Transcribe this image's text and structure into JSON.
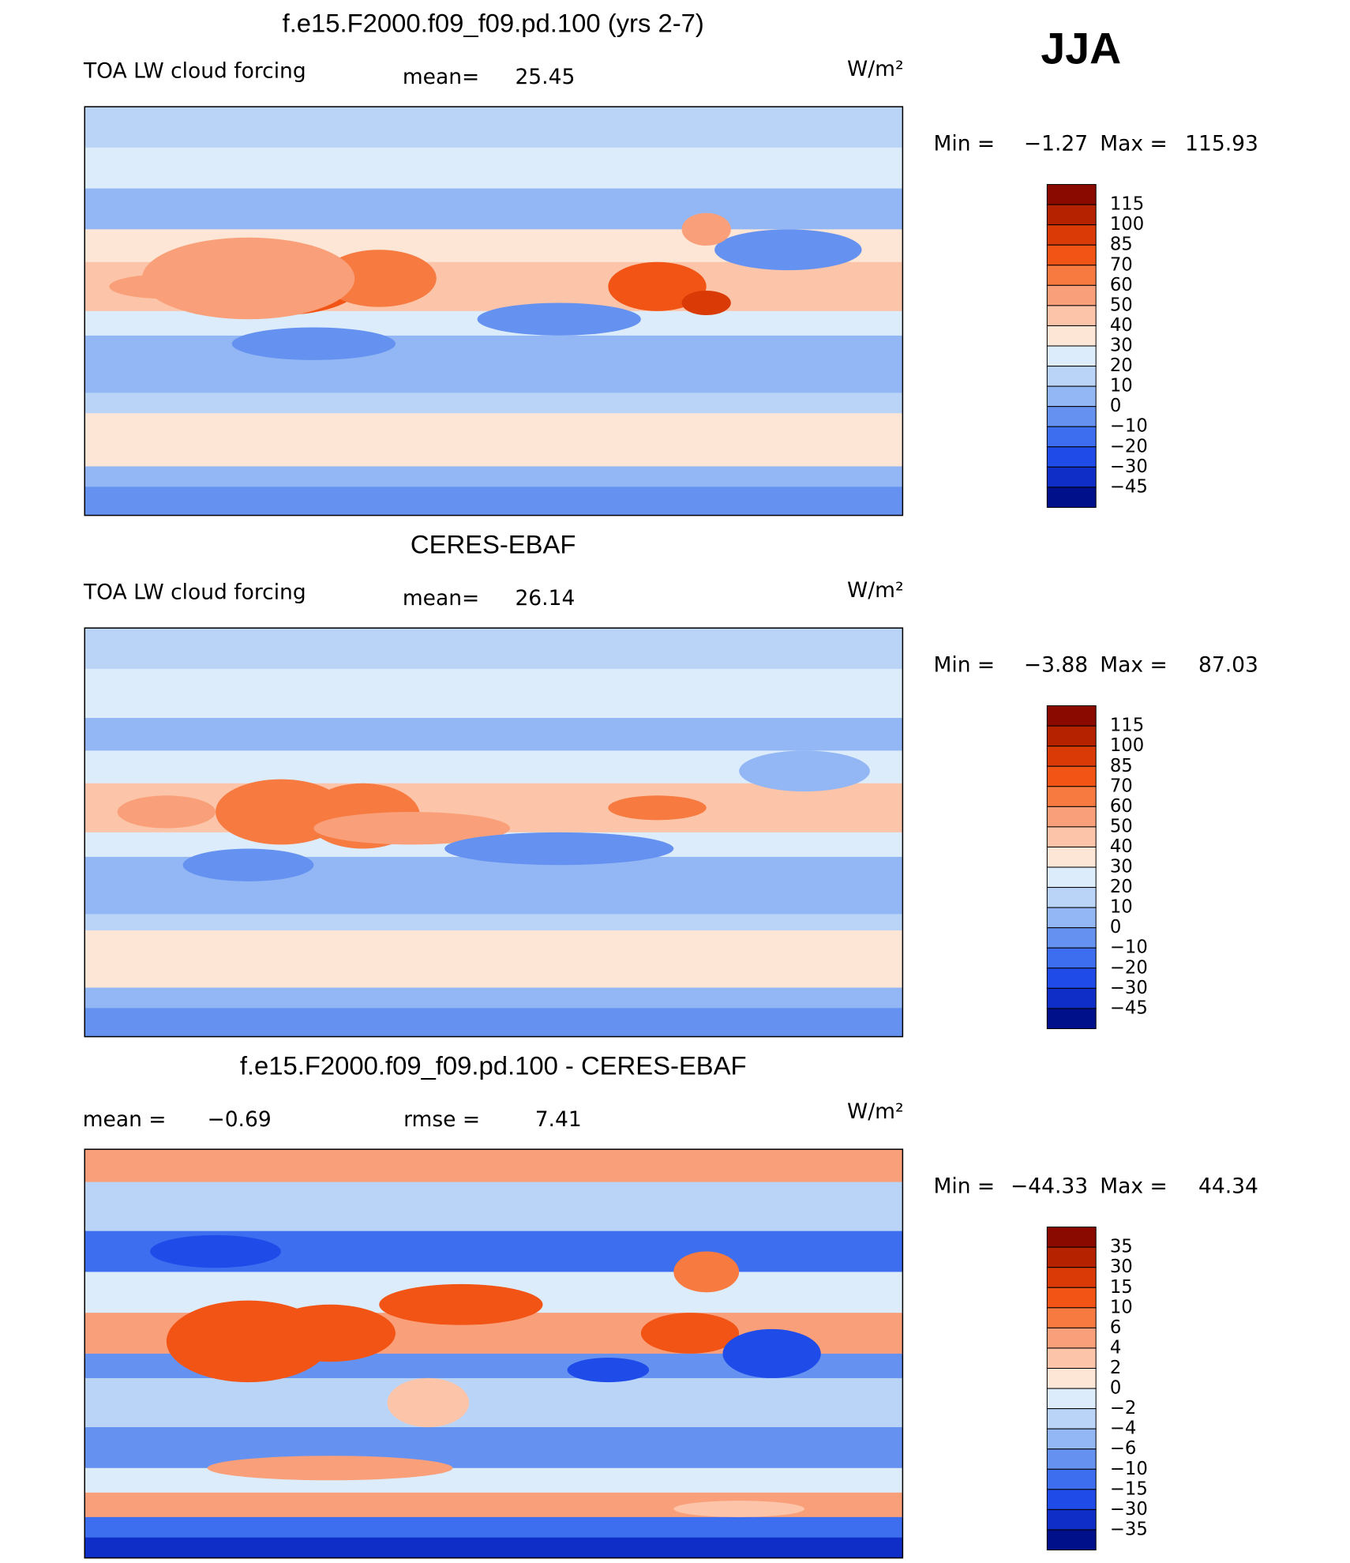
{
  "season": "JJA",
  "panels": [
    {
      "title": "f.e15.F2000.f09_f09.pd.100 (yrs 2-7)",
      "variable": "TOA LW cloud forcing",
      "mean_label": "mean=",
      "mean": "25.45",
      "units": "W/m²",
      "min_label": "Min =",
      "min": "−1.27",
      "max_label": "Max =",
      "max": "115.93",
      "colorbar": {
        "labels": [
          "115",
          "100",
          "85",
          "70",
          "60",
          "50",
          "40",
          "30",
          "20",
          "10",
          "0",
          "−10",
          "−20",
          "−30",
          "−45"
        ],
        "colors": [
          "#8b0a00",
          "#b52200",
          "#d93a06",
          "#f25416",
          "#f77a40",
          "#f9a07a",
          "#fcc4a8",
          "#fde6d6",
          "#dcecfb",
          "#bad4f8",
          "#93b7f5",
          "#6592f0",
          "#3d6ef0",
          "#1f4ce8",
          "#0f2ec8",
          "#00108a"
        ]
      }
    },
    {
      "title": "CERES-EBAF",
      "variable": "TOA LW cloud forcing",
      "mean_label": "mean=",
      "mean": "26.14",
      "units": "W/m²",
      "min_label": "Min =",
      "min": "−3.88",
      "max_label": "Max =",
      "max": "87.03",
      "colorbar": {
        "labels": [
          "115",
          "100",
          "85",
          "70",
          "60",
          "50",
          "40",
          "30",
          "20",
          "10",
          "0",
          "−10",
          "−20",
          "−30",
          "−45"
        ],
        "colors": [
          "#8b0a00",
          "#b52200",
          "#d93a06",
          "#f25416",
          "#f77a40",
          "#f9a07a",
          "#fcc4a8",
          "#fde6d6",
          "#dcecfb",
          "#bad4f8",
          "#93b7f5",
          "#6592f0",
          "#3d6ef0",
          "#1f4ce8",
          "#0f2ec8",
          "#00108a"
        ]
      }
    },
    {
      "title": "f.e15.F2000.f09_f09.pd.100 - CERES-EBAF",
      "mean_label": "mean =",
      "mean": "−0.69",
      "rmse_label": "rmse =",
      "rmse": "7.41",
      "units": "W/m²",
      "min_label": "Min =",
      "min": "−44.33",
      "max_label": "Max =",
      "max": "44.34",
      "colorbar": {
        "labels": [
          "35",
          "30",
          "15",
          "10",
          "6",
          "4",
          "2",
          "0",
          "−2",
          "−4",
          "−6",
          "−10",
          "−15",
          "−30",
          "−35"
        ],
        "colors": [
          "#8b0a00",
          "#b52200",
          "#d93a06",
          "#f25416",
          "#f77a40",
          "#f9a07a",
          "#fcc4a8",
          "#fde6d6",
          "#dcecfb",
          "#bad4f8",
          "#93b7f5",
          "#6592f0",
          "#3d6ef0",
          "#1f4ce8",
          "#0f2ec8",
          "#00108a"
        ]
      }
    }
  ]
}
